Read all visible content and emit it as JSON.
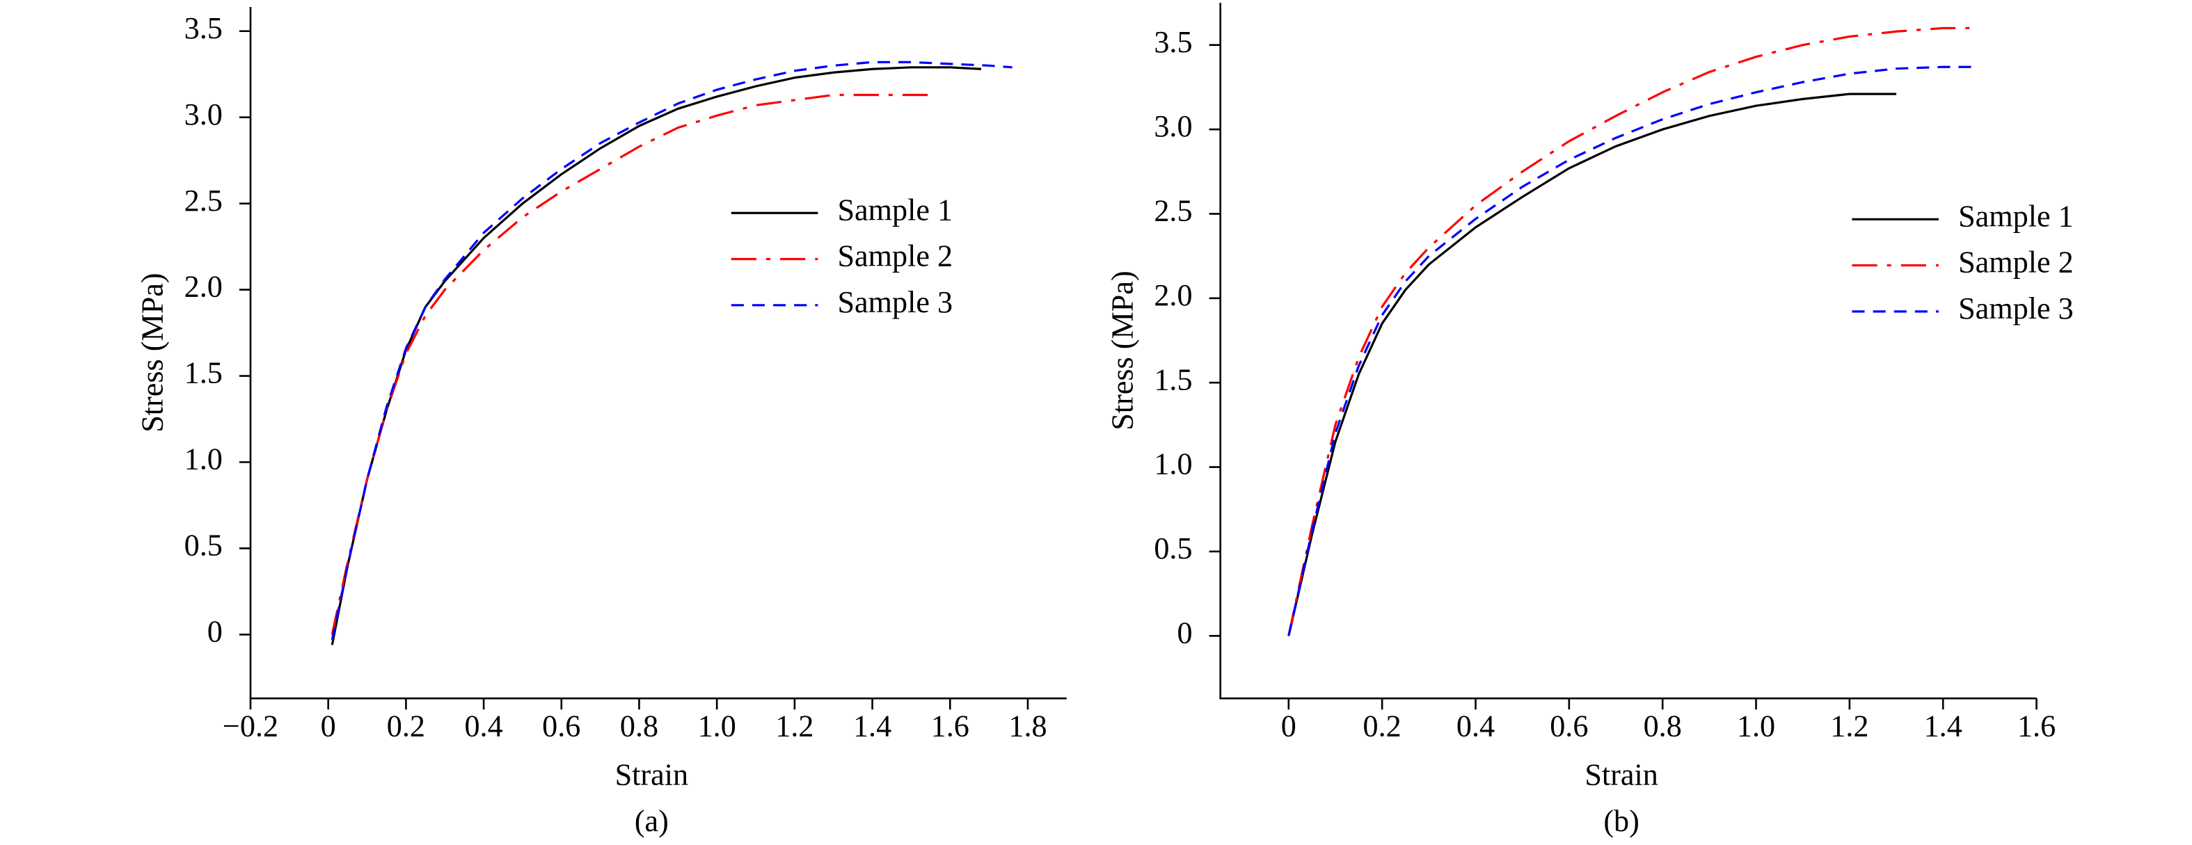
{
  "chart_data": [
    {
      "type": "line",
      "x_label": "Strain",
      "y_label": "Stress (MPa)",
      "caption": "(a)",
      "xlim": [
        -0.2,
        1.9
      ],
      "ylim": [
        -0.37,
        3.64
      ],
      "xticks": [
        {
          "value": -0.2,
          "label": "−0.2"
        },
        0,
        0.2,
        0.4,
        0.6,
        0.8,
        {
          "value": 1,
          "label": "1.0"
        },
        1.2,
        1.4,
        1.6,
        1.8
      ],
      "yticks": [
        0,
        0.5,
        {
          "value": 1,
          "label": "1.0"
        },
        1.5,
        {
          "value": 2,
          "label": "2.0"
        },
        2.5,
        {
          "value": 3,
          "label": "3.0"
        },
        3.5
      ],
      "legend": "center right",
      "series": [
        {
          "name": "Sample 1",
          "color": "#000000",
          "linestyle": "solid",
          "x": [
            0.01,
            0.05,
            0.1,
            0.15,
            0.2,
            0.25,
            0.3,
            0.4,
            0.5,
            0.6,
            0.7,
            0.8,
            0.9,
            1.0,
            1.1,
            1.2,
            1.3,
            1.4,
            1.5,
            1.6,
            1.68
          ],
          "values": [
            -0.06,
            0.4,
            0.9,
            1.3,
            1.65,
            1.9,
            2.05,
            2.3,
            2.5,
            2.67,
            2.82,
            2.95,
            3.05,
            3.12,
            3.18,
            3.23,
            3.26,
            3.28,
            3.29,
            3.29,
            3.28
          ]
        },
        {
          "name": "Sample 2",
          "color": "#ff0000",
          "linestyle": "dashdot",
          "x": [
            0.01,
            0.05,
            0.1,
            0.15,
            0.2,
            0.25,
            0.3,
            0.4,
            0.5,
            0.6,
            0.7,
            0.8,
            0.9,
            1.0,
            1.1,
            1.2,
            1.3,
            1.4,
            1.5,
            1.55
          ],
          "values": [
            0.0,
            0.42,
            0.9,
            1.3,
            1.63,
            1.85,
            2.0,
            2.23,
            2.42,
            2.57,
            2.7,
            2.83,
            2.94,
            3.01,
            3.07,
            3.1,
            3.13,
            3.13,
            3.13,
            3.13
          ]
        },
        {
          "name": "Sample 3",
          "color": "#0000ff",
          "linestyle": "dashed",
          "x": [
            0.01,
            0.05,
            0.1,
            0.15,
            0.2,
            0.25,
            0.3,
            0.4,
            0.5,
            0.6,
            0.7,
            0.8,
            0.9,
            1.0,
            1.1,
            1.2,
            1.3,
            1.4,
            1.5,
            1.6,
            1.7,
            1.76
          ],
          "values": [
            -0.03,
            0.4,
            0.9,
            1.32,
            1.66,
            1.9,
            2.06,
            2.33,
            2.53,
            2.7,
            2.85,
            2.97,
            3.08,
            3.16,
            3.22,
            3.27,
            3.3,
            3.32,
            3.32,
            3.31,
            3.3,
            3.29
          ]
        }
      ]
    },
    {
      "type": "line",
      "x_label": "Strain",
      "y_label": "Stress (MPa)",
      "caption": "(b)",
      "xlim": [
        -0.146,
        1.6
      ],
      "ylim": [
        -0.37,
        3.75
      ],
      "xticks": [
        0,
        0.2,
        0.4,
        0.6,
        0.8,
        {
          "value": 1,
          "label": "1.0"
        },
        1.2,
        1.4,
        1.6
      ],
      "yticks": [
        0,
        0.5,
        {
          "value": 1,
          "label": "1.0"
        },
        1.5,
        {
          "value": 2,
          "label": "2.0"
        },
        2.5,
        {
          "value": 3,
          "label": "3.0"
        },
        3.5
      ],
      "legend": "center right",
      "series": [
        {
          "name": "Sample 1",
          "color": "#000000",
          "linestyle": "solid",
          "x": [
            0,
            0.05,
            0.1,
            0.15,
            0.2,
            0.25,
            0.3,
            0.4,
            0.5,
            0.6,
            0.7,
            0.8,
            0.9,
            1.0,
            1.1,
            1.2,
            1.3
          ],
          "values": [
            0,
            0.6,
            1.15,
            1.55,
            1.85,
            2.05,
            2.2,
            2.42,
            2.6,
            2.77,
            2.9,
            3.0,
            3.08,
            3.14,
            3.18,
            3.21,
            3.21
          ]
        },
        {
          "name": "Sample 2",
          "color": "#ff0000",
          "linestyle": "dashdot",
          "x": [
            0,
            0.05,
            0.1,
            0.15,
            0.2,
            0.25,
            0.3,
            0.4,
            0.5,
            0.6,
            0.7,
            0.8,
            0.9,
            1.0,
            1.1,
            1.2,
            1.3,
            1.4,
            1.46
          ],
          "values": [
            0,
            0.65,
            1.25,
            1.65,
            1.95,
            2.15,
            2.3,
            2.55,
            2.75,
            2.93,
            3.08,
            3.22,
            3.34,
            3.43,
            3.5,
            3.55,
            3.58,
            3.6,
            3.6
          ]
        },
        {
          "name": "Sample 3",
          "color": "#0000ff",
          "linestyle": "dashed",
          "x": [
            0,
            0.05,
            0.1,
            0.15,
            0.2,
            0.25,
            0.3,
            0.4,
            0.5,
            0.6,
            0.7,
            0.8,
            0.9,
            1.0,
            1.1,
            1.2,
            1.3,
            1.4,
            1.46
          ],
          "values": [
            0,
            0.62,
            1.2,
            1.6,
            1.9,
            2.1,
            2.25,
            2.47,
            2.66,
            2.82,
            2.95,
            3.06,
            3.15,
            3.22,
            3.28,
            3.33,
            3.36,
            3.37,
            3.37
          ]
        }
      ]
    }
  ]
}
